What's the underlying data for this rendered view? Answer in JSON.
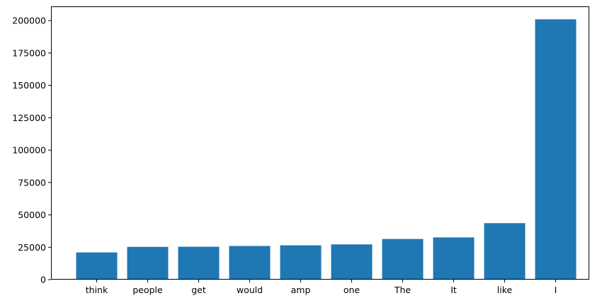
{
  "chart_data": {
    "type": "bar",
    "title": "",
    "xlabel": "",
    "ylabel": "",
    "categories": [
      "think",
      "people",
      "get",
      "would",
      "amp",
      "one",
      "The",
      "It",
      "like",
      "I"
    ],
    "values": [
      21000,
      25300,
      25400,
      26000,
      26500,
      27200,
      31400,
      32600,
      43600,
      201000
    ],
    "ylim": [
      0,
      211000
    ],
    "yticks": [
      0,
      25000,
      50000,
      75000,
      100000,
      125000,
      150000,
      175000,
      200000
    ],
    "bar_color": "#1f77b4",
    "grid": false,
    "legend": "none"
  }
}
